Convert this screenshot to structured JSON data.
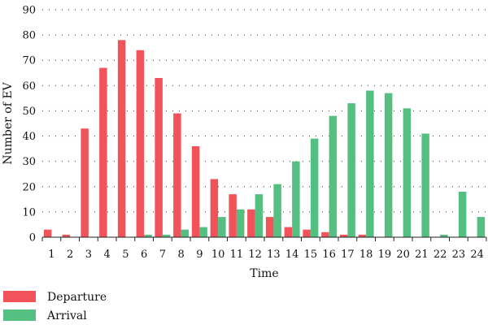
{
  "chart_data": {
    "type": "bar",
    "title": "",
    "xlabel": "Time",
    "ylabel": "Number of EV",
    "ylim": [
      0,
      90
    ],
    "yticks": [
      0,
      10,
      20,
      30,
      40,
      50,
      60,
      70,
      80,
      90
    ],
    "grid": "horizontal dotted",
    "legend_position": "bottom-left",
    "categories": [
      "1",
      "2",
      "3",
      "4",
      "5",
      "6",
      "7",
      "8",
      "9",
      "10",
      "11",
      "12",
      "13",
      "14",
      "15",
      "16",
      "17",
      "18",
      "19",
      "20",
      "21",
      "22",
      "23",
      "24"
    ],
    "series": [
      {
        "name": "Departure",
        "color": "#f0545a",
        "values": [
          3,
          1,
          43,
          67,
          78,
          74,
          63,
          49,
          36,
          23,
          17,
          11,
          8,
          4,
          3,
          2,
          1,
          1,
          0,
          0,
          0,
          0,
          0,
          0
        ]
      },
      {
        "name": "Arrival",
        "color": "#54bf80",
        "values": [
          0,
          0,
          0,
          0,
          0,
          1,
          1,
          3,
          4,
          8,
          11,
          17,
          21,
          30,
          39,
          48,
          53,
          58,
          57,
          51,
          41,
          1,
          18,
          8
        ]
      }
    ]
  }
}
